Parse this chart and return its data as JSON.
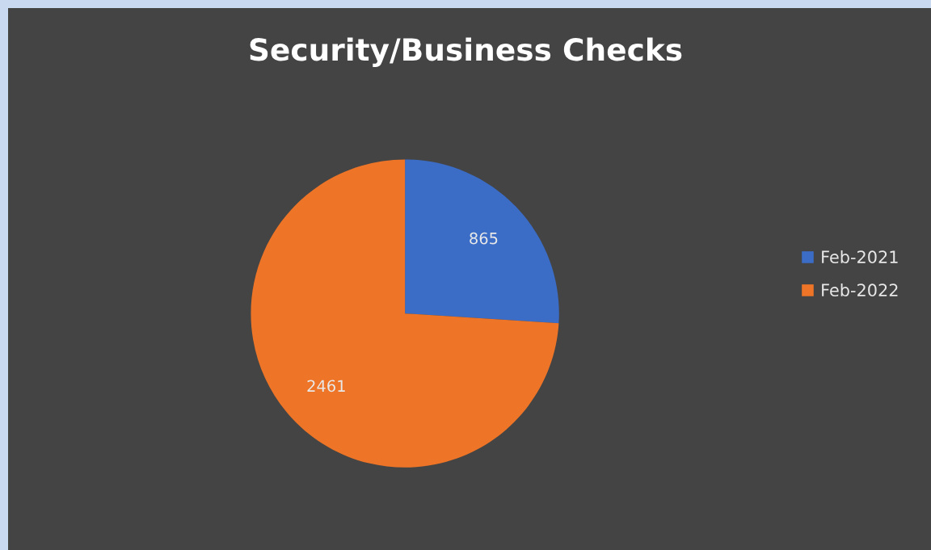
{
  "chart_data": {
    "type": "pie",
    "title": "Security/Business Checks",
    "categories": [
      "Feb-2021",
      "Feb-2022"
    ],
    "values": [
      865,
      2461
    ],
    "colors": [
      "#3b6cc6",
      "#ee7527"
    ],
    "data_labels": true,
    "legend": "right"
  }
}
